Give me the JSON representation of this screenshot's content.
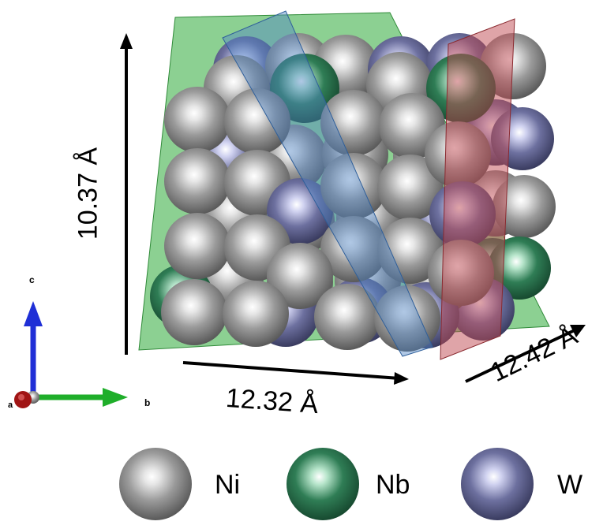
{
  "dimensions": {
    "height": "10.37 Å",
    "width_b": "12.32 Å",
    "depth_a": "12.42 Å"
  },
  "axes": {
    "c_label": "c",
    "b_label": "b",
    "a_label": "a"
  },
  "legend": [
    {
      "element": "Ni",
      "color": "#8c8c8c"
    },
    {
      "element": "Nb",
      "color": "#2e7a52"
    },
    {
      "element": "W",
      "color": "#6c6e9c"
    }
  ],
  "colors": {
    "ni": "#8c8c8c",
    "nb": "#2e7a52",
    "w": "#6c6e9c",
    "plane_green": "#3fb04a",
    "plane_blue": "#4f86c6",
    "plane_red": "#c04a52",
    "axis_c": "#1f2fd6",
    "axis_b": "#1fae2a",
    "axis_a": "#a01414"
  }
}
